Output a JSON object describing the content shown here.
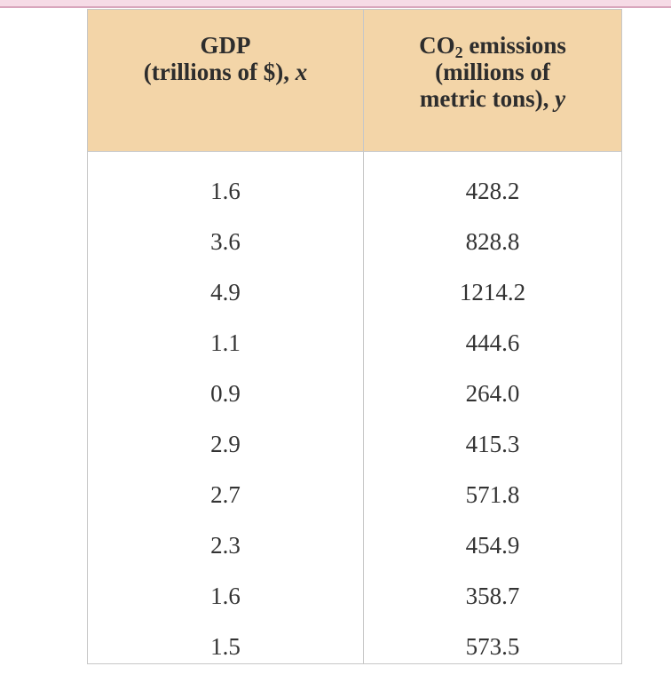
{
  "table": {
    "headers": {
      "x": {
        "line1": "GDP",
        "line2_text": "(trillions of $), ",
        "line2_var": "x"
      },
      "y": {
        "line1_a": "CO",
        "line1_sub": "2",
        "line1_b": " emissions",
        "line2": "(millions of",
        "line3_text": "metric tons), ",
        "line3_var": "y"
      }
    },
    "rows": [
      {
        "x": "1.6",
        "y": "428.2"
      },
      {
        "x": "3.6",
        "y": "828.8"
      },
      {
        "x": "4.9",
        "y": "1214.2"
      },
      {
        "x": "1.1",
        "y": "444.6"
      },
      {
        "x": "0.9",
        "y": "264.0"
      },
      {
        "x": "2.9",
        "y": "415.3"
      },
      {
        "x": "2.7",
        "y": "571.8"
      },
      {
        "x": "2.3",
        "y": "454.9"
      },
      {
        "x": "1.6",
        "y": "358.7"
      },
      {
        "x": "1.5",
        "y": "573.5"
      }
    ]
  }
}
